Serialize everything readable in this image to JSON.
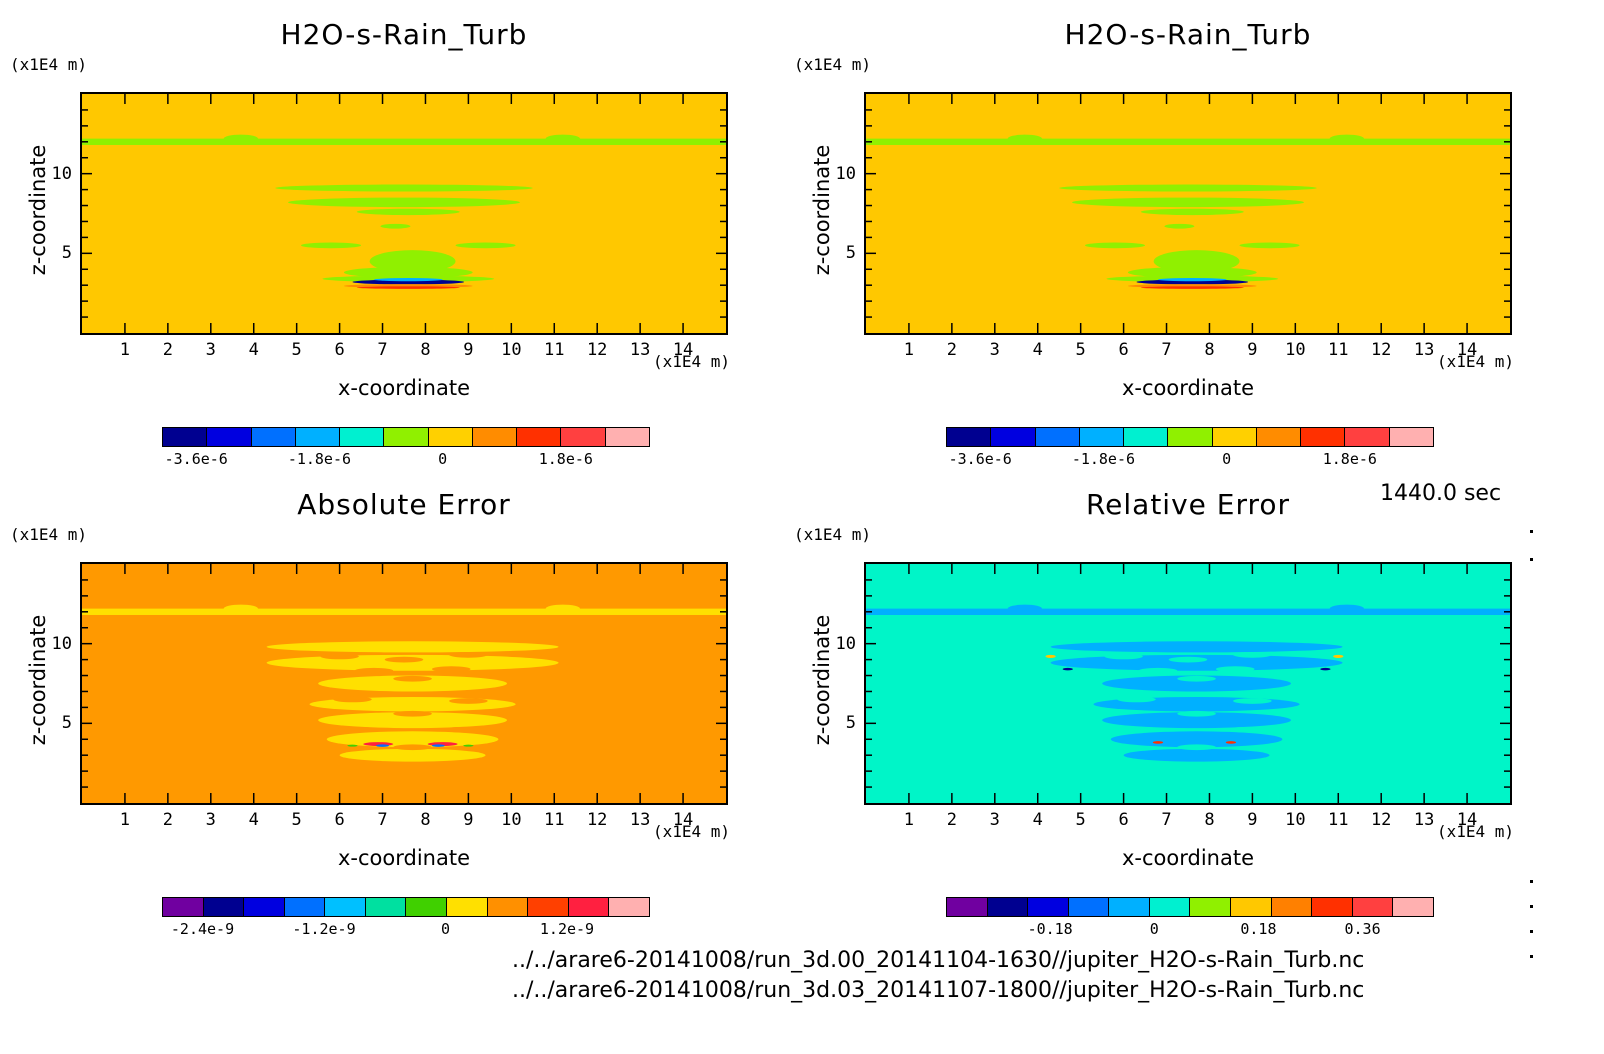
{
  "time_label": "1440.0 sec",
  "file_paths": [
    "../../arare6-20141008/run_3d.00_20141104-1630//jupiter_H2O-s-Rain_Turb.nc",
    "../../arare6-20141008/run_3d.03_20141107-1800//jupiter_H2O-s-Rain_Turb.nc"
  ],
  "chart_data": [
    {
      "type": "heatmap",
      "title": "H2O-s-Rain_Turb",
      "xlabel": "x-coordinate",
      "ylabel": "z-coordinate",
      "x_unit": "(x1E4 m)",
      "z_unit": "(x1E4 m)",
      "xlim": [
        0,
        15
      ],
      "ylim": [
        0,
        15
      ],
      "x_ticks": [
        "1",
        "2",
        "3",
        "4",
        "5",
        "6",
        "7",
        "8",
        "9",
        "10",
        "11",
        "12",
        "13",
        "14"
      ],
      "y_ticks": [
        "5",
        "10"
      ],
      "colorbar": {
        "colors": [
          "#000090",
          "#0000e0",
          "#0070ff",
          "#00b0ff",
          "#00f0d0",
          "#90f000",
          "#ffd000",
          "#ff8c00",
          "#ff3000",
          "#ff4040",
          "#ffb0b0"
        ],
        "tick_labels": [
          "-3.6e-6",
          "-1.8e-6",
          "0",
          "1.8e-6"
        ],
        "tick_values": [
          -3.6e-06,
          -1.8e-06,
          0,
          1.8e-06
        ],
        "range": [
          -4.1e-06,
          3e-06
        ]
      },
      "background_color": "#ffc800",
      "feature_color": "#90f000"
    },
    {
      "type": "heatmap",
      "title": "H2O-s-Rain_Turb",
      "xlabel": "x-coordinate",
      "ylabel": "z-coordinate",
      "x_unit": "(x1E4 m)",
      "z_unit": "(x1E4 m)",
      "xlim": [
        0,
        15
      ],
      "ylim": [
        0,
        15
      ],
      "x_ticks": [
        "1",
        "2",
        "3",
        "4",
        "5",
        "6",
        "7",
        "8",
        "9",
        "10",
        "11",
        "12",
        "13",
        "14"
      ],
      "y_ticks": [
        "5",
        "10"
      ],
      "colorbar": {
        "colors": [
          "#000090",
          "#0000e0",
          "#0070ff",
          "#00b0ff",
          "#00f0d0",
          "#90f000",
          "#ffd000",
          "#ff8c00",
          "#ff3000",
          "#ff4040",
          "#ffb0b0"
        ],
        "tick_labels": [
          "-3.6e-6",
          "-1.8e-6",
          "0",
          "1.8e-6"
        ],
        "tick_values": [
          -3.6e-06,
          -1.8e-06,
          0,
          1.8e-06
        ],
        "range": [
          -4.1e-06,
          3e-06
        ]
      },
      "background_color": "#ffc800",
      "feature_color": "#90f000"
    },
    {
      "type": "heatmap",
      "title": "Absolute Error",
      "xlabel": "x-coordinate",
      "ylabel": "z-coordinate",
      "x_unit": "(x1E4 m)",
      "z_unit": "(x1E4 m)",
      "xlim": [
        0,
        15
      ],
      "ylim": [
        0,
        15
      ],
      "x_ticks": [
        "1",
        "2",
        "3",
        "4",
        "5",
        "6",
        "7",
        "8",
        "9",
        "10",
        "11",
        "12",
        "13",
        "14"
      ],
      "y_ticks": [
        "5",
        "10"
      ],
      "colorbar": {
        "colors": [
          "#7000a0",
          "#000090",
          "#0000e0",
          "#0070ff",
          "#00c0ff",
          "#00e0a0",
          "#40d000",
          "#ffe000",
          "#ff9000",
          "#ff4000",
          "#ff2040",
          "#ffb0b0"
        ],
        "tick_labels": [
          "-2.4e-9",
          "-1.2e-9",
          "0",
          "1.2e-9"
        ],
        "tick_values": [
          -2.4e-09,
          -1.2e-09,
          0,
          1.2e-09
        ],
        "range": [
          -2.8e-09,
          2e-09
        ]
      },
      "background_color": "#ff9900",
      "feature_color": "#ffe000"
    },
    {
      "type": "heatmap",
      "title": "Relative Error",
      "xlabel": "x-coordinate",
      "ylabel": "z-coordinate",
      "x_unit": "(x1E4 m)",
      "z_unit": "(x1E4 m)",
      "xlim": [
        0,
        15
      ],
      "ylim": [
        0,
        15
      ],
      "x_ticks": [
        "1",
        "2",
        "3",
        "4",
        "5",
        "6",
        "7",
        "8",
        "9",
        "10",
        "11",
        "12",
        "13",
        "14"
      ],
      "y_ticks": [
        "5",
        "10"
      ],
      "colorbar": {
        "colors": [
          "#7000a0",
          "#000090",
          "#0000e0",
          "#0070ff",
          "#00b0ff",
          "#00f0d0",
          "#90f000",
          "#ffc800",
          "#ff8000",
          "#ff3000",
          "#ff4040",
          "#ffb0b0"
        ],
        "tick_labels": [
          "-0.18",
          "0",
          "0.18",
          "0.36"
        ],
        "tick_values": [
          -0.18,
          0,
          0.18,
          0.36
        ],
        "range": [
          -0.36,
          0.48
        ]
      },
      "background_color": "#00f5c8",
      "feature_color": "#00b0ff"
    }
  ]
}
